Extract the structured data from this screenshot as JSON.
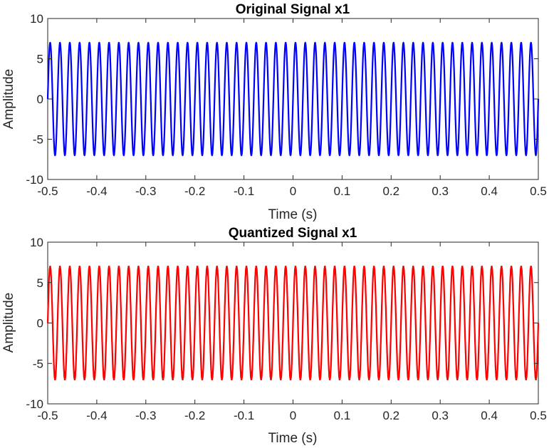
{
  "chart_data": [
    {
      "type": "line",
      "title": "Original Signal x1",
      "xlabel": "Time (s)",
      "ylabel": "Amplitude",
      "xlim": [
        -0.5,
        0.5
      ],
      "ylim": [
        -10,
        10
      ],
      "xticks": [
        -0.5,
        -0.4,
        -0.3,
        -0.2,
        -0.1,
        0,
        0.1,
        0.2,
        0.3,
        0.4,
        0.5
      ],
      "xtick_labels": [
        "-0.5",
        "-0.4",
        "-0.3",
        "-0.2",
        "-0.1",
        "0",
        "0.1",
        "0.2",
        "0.3",
        "0.4",
        "0.5"
      ],
      "yticks": [
        -10,
        -5,
        0,
        5,
        10
      ],
      "ytick_labels": [
        "-10",
        "-5",
        "0",
        "5",
        "10"
      ],
      "grid": false,
      "series": [
        {
          "color": "#0000ff",
          "kind": "sine",
          "amplitude": 7,
          "frequency_hz": 50,
          "x_start": -0.5,
          "x_end": 0.5,
          "quantized": false
        }
      ]
    },
    {
      "type": "line",
      "title": "Quantized Signal x1",
      "xlabel": "Time (s)",
      "ylabel": "Amplitude",
      "xlim": [
        -0.5,
        0.5
      ],
      "ylim": [
        -10,
        10
      ],
      "xticks": [
        -0.5,
        -0.4,
        -0.3,
        -0.2,
        -0.1,
        0,
        0.1,
        0.2,
        0.3,
        0.4,
        0.5
      ],
      "xtick_labels": [
        "-0.5",
        "-0.4",
        "-0.3",
        "-0.2",
        "-0.1",
        "0",
        "0.1",
        "0.2",
        "0.3",
        "0.4",
        "0.5"
      ],
      "yticks": [
        -10,
        -5,
        0,
        5,
        10
      ],
      "ytick_labels": [
        "-10",
        "-5",
        "0",
        "5",
        "10"
      ],
      "grid": false,
      "series": [
        {
          "color": "#ff0000",
          "kind": "sine",
          "amplitude": 7,
          "frequency_hz": 50,
          "x_start": -0.5,
          "x_end": 0.5,
          "quantized": true
        }
      ]
    }
  ]
}
